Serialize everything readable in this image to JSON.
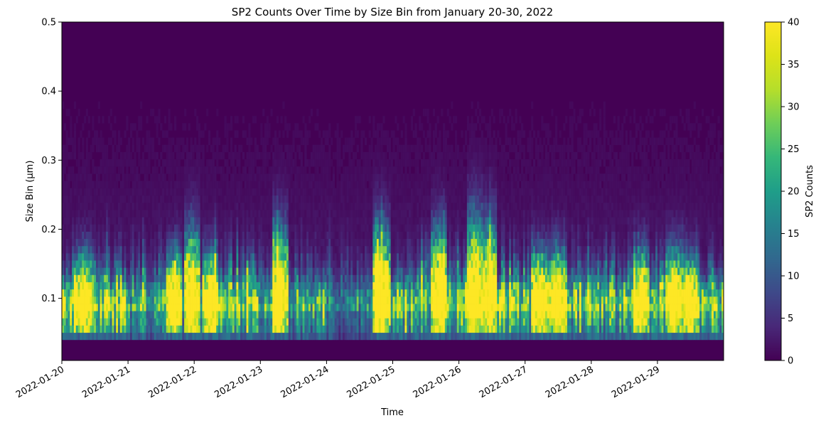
{
  "chart_data": {
    "type": "heatmap",
    "title": "SP2 Counts Over Time by Size Bin from January 20-30, 2022",
    "xlabel": "Time",
    "ylabel": "Size Bin (µm)",
    "colorbar_label": "SP2 Counts",
    "x_range": [
      "2022-01-20",
      "2022-01-30"
    ],
    "x_ticks": [
      "2022-01-20",
      "2022-01-21",
      "2022-01-22",
      "2022-01-23",
      "2022-01-24",
      "2022-01-25",
      "2022-01-26",
      "2022-01-27",
      "2022-01-28",
      "2022-01-29"
    ],
    "ylim": [
      0.01,
      0.5
    ],
    "y_ticks": [
      0.1,
      0.2,
      0.3,
      0.4,
      0.5
    ],
    "y_tick_labels": [
      "0.1",
      "0.2",
      "0.3",
      "0.4",
      "0.5"
    ],
    "colorbar_range": [
      0,
      40
    ],
    "colorbar_ticks": [
      0,
      5,
      10,
      15,
      20,
      25,
      30,
      35,
      40
    ],
    "colormap": "viridis",
    "lowest_filled_size_bin": 0.04,
    "approx_mode_size_bin": 0.085,
    "activity_by_day": [
      {
        "day": "2022-01-20",
        "relative_intensity": 1.0
      },
      {
        "day": "2022-01-21",
        "relative_intensity": 0.55
      },
      {
        "day": "2022-01-22",
        "relative_intensity": 0.8
      },
      {
        "day": "2022-01-23",
        "relative_intensity": 0.6
      },
      {
        "day": "2022-01-24",
        "relative_intensity": 0.4
      },
      {
        "day": "2022-01-25",
        "relative_intensity": 0.75
      },
      {
        "day": "2022-01-26",
        "relative_intensity": 0.85
      },
      {
        "day": "2022-01-27",
        "relative_intensity": 0.75
      },
      {
        "day": "2022-01-28",
        "relative_intensity": 0.8
      },
      {
        "day": "2022-01-29",
        "relative_intensity": 0.85
      }
    ],
    "bursts": [
      {
        "time": "2022-01-20T08:00",
        "top_size_bin": 0.2
      },
      {
        "time": "2022-01-21T17:00",
        "top_size_bin": 0.2
      },
      {
        "time": "2022-01-21T23:00",
        "top_size_bin": 0.25
      },
      {
        "time": "2022-01-22T06:00",
        "top_size_bin": 0.2
      },
      {
        "time": "2022-01-23T07:00",
        "top_size_bin": 0.25
      },
      {
        "time": "2022-01-24T20:00",
        "top_size_bin": 0.25
      },
      {
        "time": "2022-01-25T17:00",
        "top_size_bin": 0.25
      },
      {
        "time": "2022-01-26T06:00",
        "top_size_bin": 0.28
      },
      {
        "time": "2022-01-26T11:00",
        "top_size_bin": 0.26
      },
      {
        "time": "2022-01-27T06:00",
        "top_size_bin": 0.2
      },
      {
        "time": "2022-01-27T12:00",
        "top_size_bin": 0.2
      },
      {
        "time": "2022-01-28T18:00",
        "top_size_bin": 0.2
      },
      {
        "time": "2022-01-29T06:00",
        "top_size_bin": 0.21
      },
      {
        "time": "2022-01-29T12:00",
        "top_size_bin": 0.19
      }
    ]
  }
}
